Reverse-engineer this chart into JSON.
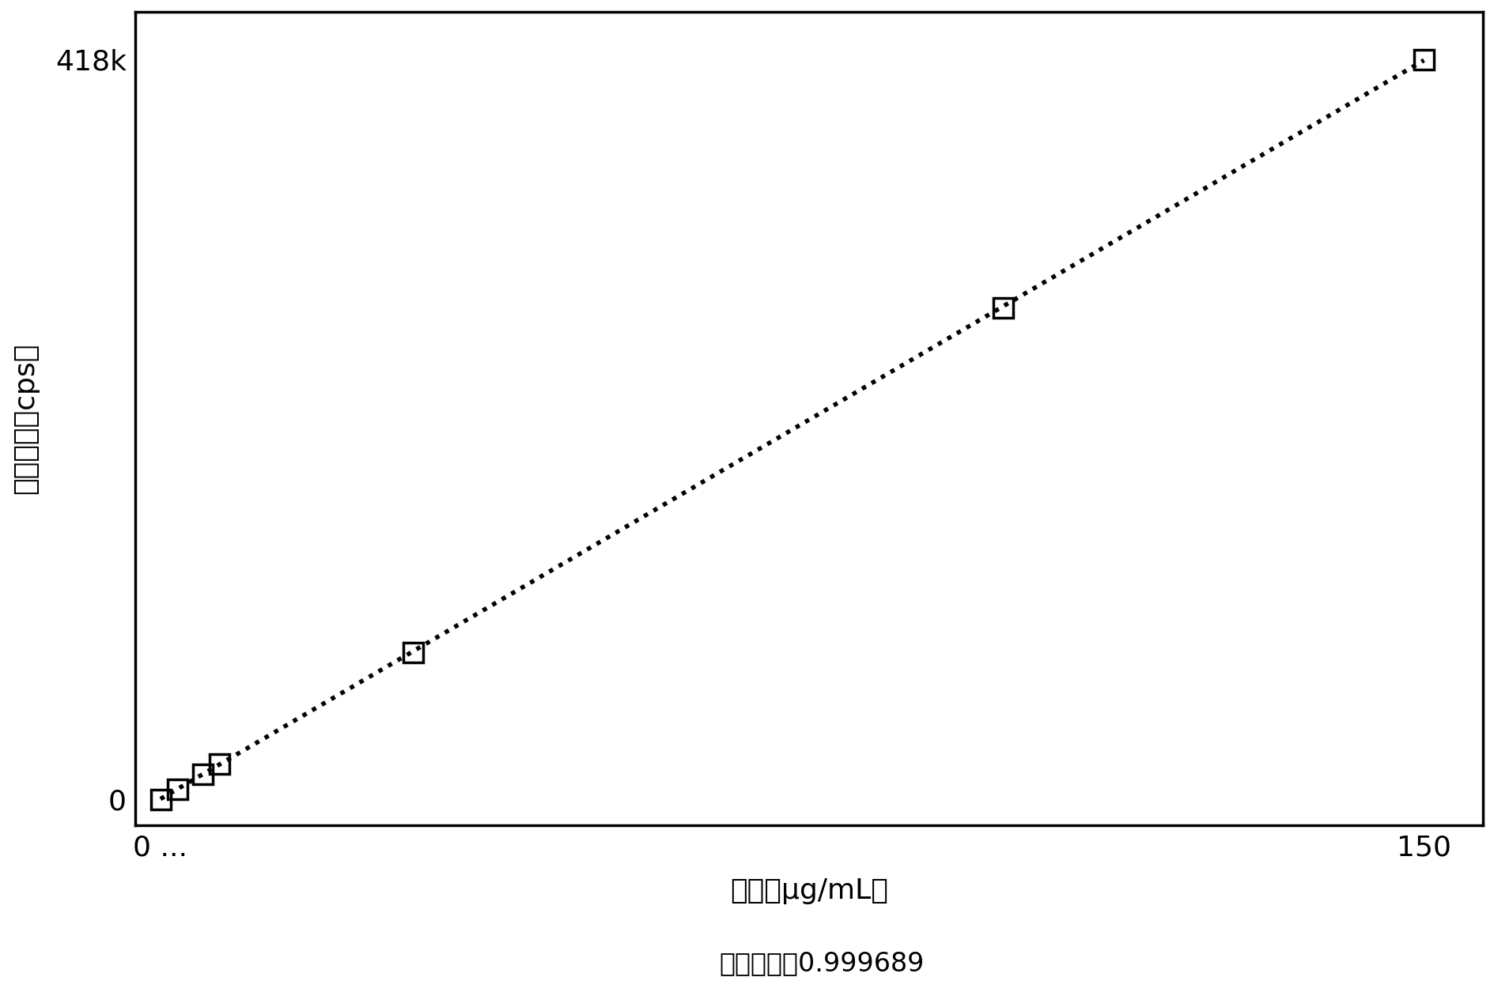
{
  "title": "",
  "xlabel": "浓度（μg/mL）",
  "ylabel": "发射强度（cps）",
  "subtitle": "校正系数：0.999689",
  "x_data": [
    0,
    1,
    2,
    5,
    7,
    30,
    100,
    150
  ],
  "y_data": [
    0,
    2800,
    5500,
    14000,
    20000,
    83000,
    278000,
    418000
  ],
  "xlim": [
    -3,
    157
  ],
  "ylim": [
    -15000,
    445000
  ],
  "ytick_labels": [
    "0",
    "418k"
  ],
  "ytick_values": [
    0,
    418000
  ],
  "xtick_labels": [
    "0 ...",
    "150"
  ],
  "xtick_values": [
    0,
    150
  ],
  "marker_x": [
    0,
    2,
    5,
    7,
    30,
    100,
    150
  ],
  "marker_y": [
    0,
    5500,
    14000,
    20000,
    83000,
    278000,
    418000
  ],
  "line_color": "#000000",
  "marker_color": "#000000",
  "background_color": "#ffffff",
  "font_size_labels": 26,
  "font_size_ticks": 26,
  "font_size_subtitle": 24
}
